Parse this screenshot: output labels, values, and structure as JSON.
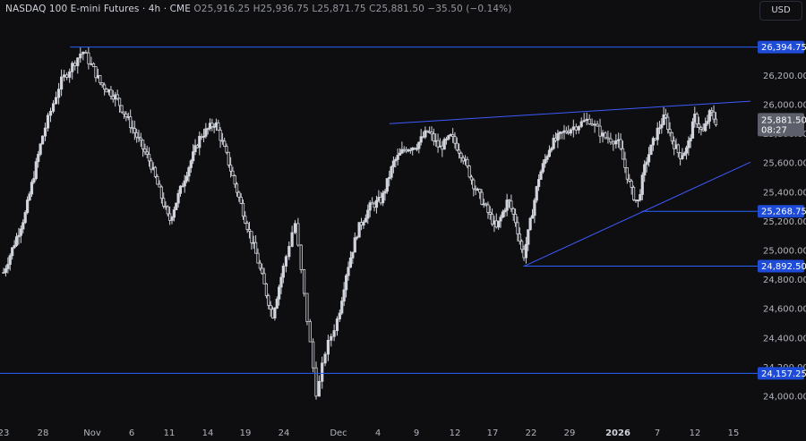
{
  "header": {
    "symbol": "NASDAQ 100 E-mini Futures · 4h · CME",
    "open_label": "O",
    "open": "25,916.25",
    "high_label": "H",
    "high": "25,936.75",
    "low_label": "L",
    "low": "25,871.75",
    "close_label": "C",
    "close": "25,881.50",
    "change": "−35.50 (−0.14%)"
  },
  "currency": "USD",
  "colors": {
    "background": "#0e0e10",
    "candle": "#d1d4dc",
    "level_line": "#2962ff",
    "trendline": "#3d5afe",
    "label_bg": "#1e4bd8",
    "last_price_bg": "#5d606b"
  },
  "chart_data": {
    "type": "candlestick",
    "timeframe": "4h",
    "y_axis": {
      "ylim": [
        23880,
        26640
      ],
      "ticks": [
        {
          "value": 24000,
          "label": "24,000.00"
        },
        {
          "value": 24200,
          "label": "24,200.00"
        },
        {
          "value": 24400,
          "label": "24,400.00"
        },
        {
          "value": 24600,
          "label": "24,600.00"
        },
        {
          "value": 24800,
          "label": "24,800.00"
        },
        {
          "value": 25000,
          "label": "25,000.00"
        },
        {
          "value": 25200,
          "label": "25,200.00"
        },
        {
          "value": 25400,
          "label": "25,400.00"
        },
        {
          "value": 25600,
          "label": "25,600.00"
        },
        {
          "value": 25800,
          "label": "25,800.00"
        },
        {
          "value": 26000,
          "label": "26,000.00"
        },
        {
          "value": 26200,
          "label": "26,200.00"
        }
      ]
    },
    "x_axis": {
      "ticks": [
        {
          "label": "23",
          "bold": false
        },
        {
          "label": "28",
          "bold": false
        },
        {
          "label": "Nov",
          "bold": false
        },
        {
          "label": "6",
          "bold": false
        },
        {
          "label": "11",
          "bold": false
        },
        {
          "label": "14",
          "bold": false
        },
        {
          "label": "19",
          "bold": false
        },
        {
          "label": "24",
          "bold": false
        },
        {
          "label": "Dec",
          "bold": false
        },
        {
          "label": "4",
          "bold": false
        },
        {
          "label": "9",
          "bold": false
        },
        {
          "label": "12",
          "bold": false
        },
        {
          "label": "17",
          "bold": false
        },
        {
          "label": "22",
          "bold": false
        },
        {
          "label": "29",
          "bold": false
        },
        {
          "label": "2026",
          "bold": true
        },
        {
          "label": "7",
          "bold": false
        },
        {
          "label": "12",
          "bold": false
        },
        {
          "label": "15",
          "bold": false
        }
      ]
    },
    "horizontal_levels": [
      {
        "value": 26394.75,
        "label": "26,394.75"
      },
      {
        "value": 25268.75,
        "label": "25,268.75"
      },
      {
        "value": 24892.5,
        "label": "24,892.50"
      },
      {
        "value": 24157.25,
        "label": "24,157.25"
      }
    ],
    "last_price": {
      "value": 25881.5,
      "label": "25,881.50",
      "countdown": "08:27"
    },
    "price_path": [
      {
        "x": 0.0,
        "p": 24850
      },
      {
        "x": 0.55,
        "p": 25250
      },
      {
        "x": 1.0,
        "p": 25800
      },
      {
        "x": 1.35,
        "p": 26150
      },
      {
        "x": 1.8,
        "p": 26370
      },
      {
        "x": 2.2,
        "p": 26150
      },
      {
        "x": 2.6,
        "p": 26050
      },
      {
        "x": 3.0,
        "p": 25850
      },
      {
        "x": 3.5,
        "p": 25600
      },
      {
        "x": 4.0,
        "p": 25200
      },
      {
        "x": 4.4,
        "p": 25500
      },
      {
        "x": 4.8,
        "p": 25780
      },
      {
        "x": 5.2,
        "p": 25880
      },
      {
        "x": 5.5,
        "p": 25650
      },
      {
        "x": 5.9,
        "p": 25300
      },
      {
        "x": 6.3,
        "p": 24950
      },
      {
        "x": 6.7,
        "p": 24550
      },
      {
        "x": 7.0,
        "p": 24900
      },
      {
        "x": 7.2,
        "p": 25200
      },
      {
        "x": 7.45,
        "p": 24450
      },
      {
        "x": 7.6,
        "p": 24000
      },
      {
        "x": 7.75,
        "p": 24300
      },
      {
        "x": 8.0,
        "p": 24550
      },
      {
        "x": 8.2,
        "p": 24850
      },
      {
        "x": 8.5,
        "p": 25150
      },
      {
        "x": 8.8,
        "p": 25300
      },
      {
        "x": 9.1,
        "p": 25350
      },
      {
        "x": 9.4,
        "p": 25600
      },
      {
        "x": 9.7,
        "p": 25700
      },
      {
        "x": 10.0,
        "p": 25720
      },
      {
        "x": 10.3,
        "p": 25820
      },
      {
        "x": 10.6,
        "p": 25700
      },
      {
        "x": 10.9,
        "p": 25780
      },
      {
        "x": 11.2,
        "p": 25650
      },
      {
        "x": 11.5,
        "p": 25450
      },
      {
        "x": 11.8,
        "p": 25300
      },
      {
        "x": 12.1,
        "p": 25150
      },
      {
        "x": 12.4,
        "p": 25350
      },
      {
        "x": 12.6,
        "p": 25200
      },
      {
        "x": 12.8,
        "p": 24950
      },
      {
        "x": 12.95,
        "p": 25150
      },
      {
        "x": 13.2,
        "p": 25500
      },
      {
        "x": 13.5,
        "p": 25720
      },
      {
        "x": 13.8,
        "p": 25800
      },
      {
        "x": 14.1,
        "p": 25850
      },
      {
        "x": 14.4,
        "p": 25900
      },
      {
        "x": 14.7,
        "p": 25780
      },
      {
        "x": 15.0,
        "p": 25750
      },
      {
        "x": 15.2,
        "p": 25550
      },
      {
        "x": 15.35,
        "p": 25400
      },
      {
        "x": 15.5,
        "p": 25320
      },
      {
        "x": 15.7,
        "p": 25600
      },
      {
        "x": 16.0,
        "p": 25820
      },
      {
        "x": 16.2,
        "p": 25920
      },
      {
        "x": 16.4,
        "p": 25750
      },
      {
        "x": 16.6,
        "p": 25650
      },
      {
        "x": 16.8,
        "p": 25700
      },
      {
        "x": 17.0,
        "p": 25920
      },
      {
        "x": 17.2,
        "p": 25800
      },
      {
        "x": 17.4,
        "p": 25950
      },
      {
        "x": 17.55,
        "p": 25881.5
      }
    ],
    "trendlines": [
      {
        "from": {
          "x": 9.3,
          "p": 25870
        },
        "to": {
          "x": 17.0,
          "p": 26000
        },
        "extend_to_x": 18.55
      },
      {
        "from": {
          "x": 12.82,
          "p": 24892.5
        },
        "to": {
          "x": 15.65,
          "p": 25268.75
        },
        "extend_to_x": 18.55
      }
    ]
  }
}
